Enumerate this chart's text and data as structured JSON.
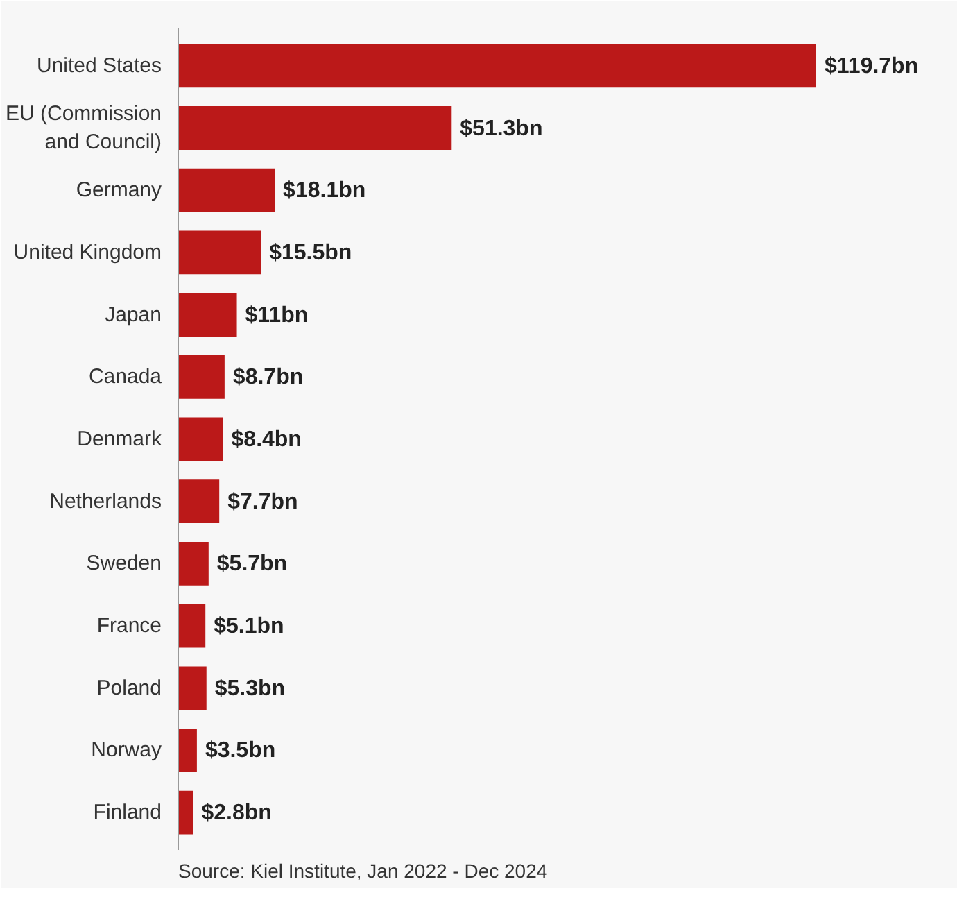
{
  "chart_data": {
    "type": "bar",
    "orientation": "horizontal",
    "categories": [
      "United States",
      "EU (Commission\nand Council)",
      "Germany",
      "United Kingdom",
      "Japan",
      "Canada",
      "Denmark",
      "Netherlands",
      "Sweden",
      "France",
      "Poland",
      "Norway",
      "Finland"
    ],
    "values": [
      119.7,
      51.3,
      18.1,
      15.5,
      11,
      8.7,
      8.4,
      7.7,
      5.7,
      5.1,
      5.3,
      3.5,
      2.8
    ],
    "value_labels": [
      "$119.7bn",
      "$51.3bn",
      "$18.1bn",
      "$15.5bn",
      "$11bn",
      "$8.7bn",
      "$8.4bn",
      "$7.7bn",
      "$5.7bn",
      "$5.1bn",
      "$5.3bn",
      "$3.5bn",
      "$2.8bn"
    ],
    "color": "#bb1919",
    "annotations": [
      "Source: Kiel Institute, Jan 2022 - Dec 2024"
    ],
    "grid": false
  }
}
